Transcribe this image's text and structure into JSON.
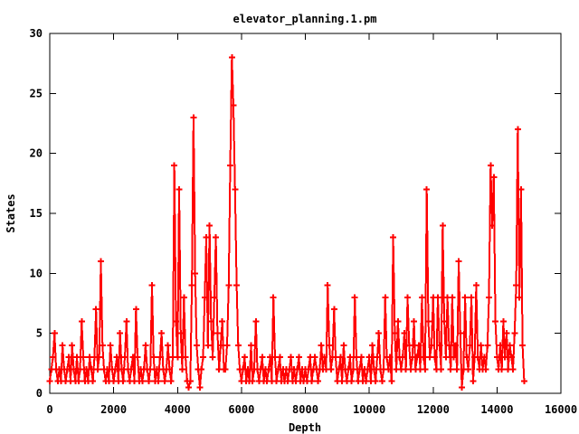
{
  "colors": {
    "background": "#ffffff",
    "axis": "#000000",
    "text": "#000000",
    "series": "#ff0000"
  },
  "chart_data": {
    "type": "line",
    "title": "elevator_planning.1.pm",
    "xlabel": "Depth",
    "ylabel": "States",
    "xlim": [
      0,
      16000
    ],
    "ylim": [
      0,
      30
    ],
    "x_ticks": [
      0,
      2000,
      4000,
      6000,
      8000,
      10000,
      12000,
      14000,
      16000
    ],
    "y_ticks": [
      0,
      5,
      10,
      15,
      20,
      25,
      30
    ],
    "grid": false,
    "legend": false,
    "series": [
      {
        "color": "#ff0000",
        "marker": "plus",
        "x_start": 0,
        "x_step": 50,
        "values": [
          1,
          2,
          3,
          5,
          2,
          1,
          2,
          1,
          4,
          2,
          1,
          2,
          3,
          1,
          4,
          2,
          1,
          3,
          1,
          2,
          6,
          3,
          1,
          2,
          1,
          3,
          2,
          1,
          3,
          7,
          2,
          3,
          11,
          4,
          2,
          1,
          2,
          1,
          4,
          2,
          1,
          2,
          3,
          1,
          5,
          2,
          1,
          3,
          6,
          2,
          1,
          2,
          3,
          1,
          7,
          3,
          1,
          2,
          1,
          2,
          4,
          2,
          1,
          2,
          9,
          3,
          1,
          2,
          1,
          3,
          5,
          2,
          1,
          2,
          4,
          2,
          1,
          3,
          19,
          6,
          3,
          17,
          5,
          2,
          8,
          3,
          1,
          0.5,
          1,
          9,
          23,
          10,
          4,
          2,
          0.5,
          2,
          3,
          8,
          13,
          4,
          14,
          6,
          3,
          8,
          13,
          5,
          2,
          4,
          6,
          2,
          2,
          4,
          9,
          19,
          28,
          24,
          17,
          9,
          4,
          2,
          1,
          2,
          3,
          1,
          2,
          1,
          4,
          1,
          2,
          6,
          2,
          1,
          2,
          3,
          1,
          2,
          1,
          2,
          3,
          1,
          8,
          3,
          1,
          2,
          3,
          1,
          2,
          1,
          2,
          1,
          2,
          3,
          1,
          2,
          1,
          2,
          3,
          1,
          2,
          1,
          2,
          1,
          2,
          3,
          1,
          2,
          3,
          2,
          1,
          2,
          4,
          2,
          3,
          2,
          9,
          4,
          2,
          3,
          7,
          3,
          1,
          2,
          3,
          1,
          4,
          2,
          1,
          2,
          3,
          1,
          2,
          8,
          3,
          1,
          2,
          3,
          1,
          2,
          1,
          2,
          3,
          1,
          4,
          2,
          1,
          3,
          5,
          2,
          1,
          2,
          8,
          3,
          2,
          3,
          1,
          13,
          5,
          2,
          6,
          3,
          2,
          3,
          5,
          2,
          8,
          4,
          2,
          3,
          6,
          2,
          3,
          4,
          2,
          8,
          3,
          2,
          17,
          6,
          3,
          4,
          8,
          3,
          2,
          8,
          4,
          2,
          14,
          6,
          3,
          8,
          4,
          2,
          8,
          3,
          4,
          2,
          11,
          5,
          0.5,
          2,
          8,
          3,
          2,
          4,
          8,
          1,
          3,
          9,
          3,
          2,
          4,
          2,
          3,
          2,
          4,
          8,
          19,
          14,
          18,
          6,
          3,
          2,
          4,
          2,
          6,
          3,
          5,
          2,
          4,
          3,
          2,
          5,
          9,
          22,
          8,
          17,
          4,
          1
        ]
      }
    ]
  }
}
